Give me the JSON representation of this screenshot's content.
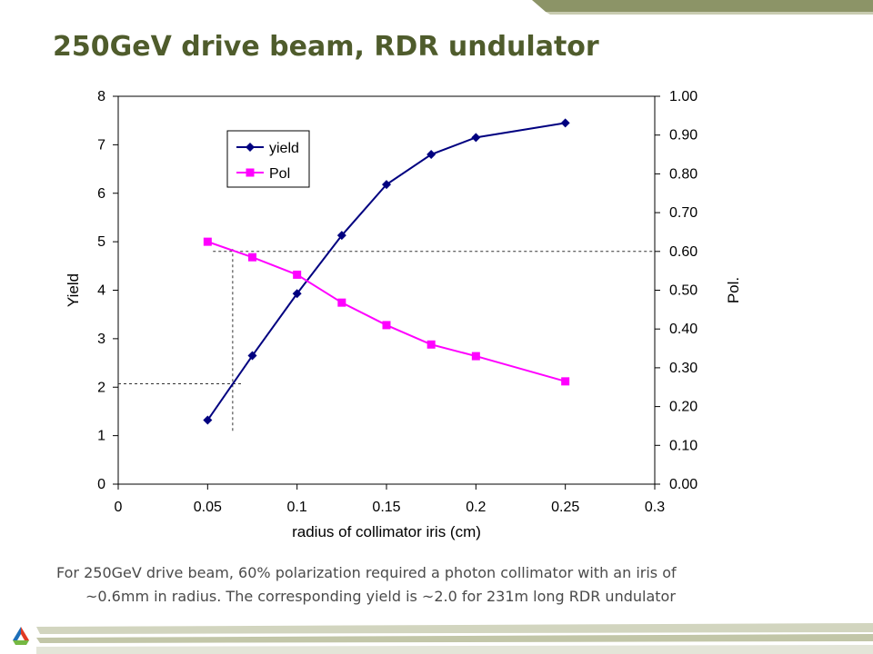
{
  "slide": {
    "title": "250GeV drive beam, RDR undulator",
    "caption_line1": "For 250GeV drive beam, 60% polarization required a photon collimator with an iris of",
    "caption_line2": "~0.6mm in radius.  The corresponding yield is ~2.0 for 231m long RDR undulator"
  },
  "theme": {
    "title_color": "#4f5c2c",
    "band_color": "#8c9467",
    "band_light": "#d2d5bf"
  },
  "chart_data": {
    "type": "line",
    "title": "",
    "xlabel": "radius of collimator iris (cm)",
    "ylabel": "Yield",
    "y2label": "Pol.",
    "xlim": [
      0,
      0.3
    ],
    "ylim": [
      0,
      8
    ],
    "y2lim": [
      0,
      1.0
    ],
    "x_ticks": [
      "0",
      "0.05",
      "0.1",
      "0.15",
      "0.2",
      "0.25",
      "0.3"
    ],
    "x_tick_values": [
      0,
      0.05,
      0.1,
      0.15,
      0.2,
      0.25,
      0.3
    ],
    "y_ticks": [
      "0",
      "1",
      "2",
      "3",
      "4",
      "5",
      "6",
      "7",
      "8"
    ],
    "y2_ticks": [
      "0.00",
      "0.10",
      "0.20",
      "0.30",
      "0.40",
      "0.50",
      "0.60",
      "0.70",
      "0.80",
      "0.90",
      "1.00"
    ],
    "grid": false,
    "legend_position": "top-left",
    "series": [
      {
        "name": "yield",
        "axis": "left",
        "color": "#000080",
        "marker": "diamond",
        "x": [
          0.05,
          0.075,
          0.1,
          0.125,
          0.15,
          0.175,
          0.2,
          0.25
        ],
        "values": [
          1.32,
          2.65,
          3.93,
          5.13,
          6.18,
          6.8,
          7.15,
          7.45
        ]
      },
      {
        "name": "Pol",
        "axis": "right",
        "color": "#ff00ff",
        "marker": "square",
        "x": [
          0.05,
          0.075,
          0.1,
          0.125,
          0.15,
          0.175,
          0.2,
          0.25
        ],
        "values": [
          0.625,
          0.585,
          0.54,
          0.468,
          0.41,
          0.36,
          0.33,
          0.265
        ]
      }
    ],
    "annotations": [
      {
        "kind": "hline-dashed",
        "axis": "right",
        "y": 0.6,
        "x_from": 0.053,
        "x_to": 0.3
      },
      {
        "kind": "vline-dashed",
        "x": 0.064,
        "y_from": 1.1,
        "y_to": 4.85
      },
      {
        "kind": "hline-dashed",
        "axis": "left",
        "y": 2.07,
        "x_from": 0,
        "x_to": 0.07
      }
    ]
  }
}
